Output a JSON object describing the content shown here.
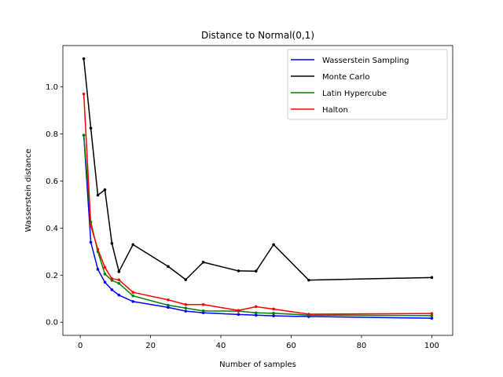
{
  "chart_data": {
    "type": "line",
    "title": "Distance to Normal(0,1)",
    "xlabel": "Number of samples",
    "ylabel": "Wasserstein distance",
    "xlim": [
      -4.95,
      105.95
    ],
    "ylim": [
      -0.056,
      1.176
    ],
    "xticks": [
      0,
      20,
      40,
      60,
      80,
      100
    ],
    "yticks": [
      0.0,
      0.2,
      0.4,
      0.6,
      0.8,
      1.0
    ],
    "xtick_labels": [
      "0",
      "20",
      "40",
      "60",
      "80",
      "100"
    ],
    "ytick_labels": [
      "0.0",
      "0.2",
      "0.4",
      "0.6",
      "0.8",
      "1.0"
    ],
    "grid": false,
    "legend_position": "top-right",
    "series": [
      {
        "name": "Wasserstein Sampling",
        "color": "#0000ff",
        "x": [
          1,
          3,
          5,
          7,
          9,
          11,
          15,
          25,
          30,
          35,
          45,
          50,
          55,
          65,
          100
        ],
        "y": [
          0.795,
          0.34,
          0.225,
          0.17,
          0.138,
          0.115,
          0.088,
          0.063,
          0.047,
          0.04,
          0.033,
          0.03,
          0.027,
          0.024,
          0.017
        ]
      },
      {
        "name": "Monte Carlo",
        "color": "#000000",
        "x": [
          1,
          3,
          5,
          7,
          9,
          11,
          15,
          25,
          30,
          35,
          45,
          50,
          55,
          65,
          100
        ],
        "y": [
          1.12,
          0.825,
          0.54,
          0.563,
          0.335,
          0.215,
          0.33,
          0.237,
          0.181,
          0.255,
          0.218,
          0.217,
          0.33,
          0.179,
          0.19
        ]
      },
      {
        "name": "Latin Hypercube",
        "color": "#008000",
        "x": [
          1,
          3,
          5,
          7,
          9,
          11,
          15,
          25,
          30,
          35,
          45,
          50,
          55,
          65,
          100
        ],
        "y": [
          0.795,
          0.425,
          0.3,
          0.205,
          0.178,
          0.165,
          0.112,
          0.072,
          0.06,
          0.048,
          0.047,
          0.04,
          0.038,
          0.03,
          0.028
        ]
      },
      {
        "name": "Halton",
        "color": "#ff0000",
        "x": [
          1,
          3,
          5,
          7,
          9,
          11,
          15,
          25,
          30,
          35,
          45,
          50,
          55,
          65,
          100
        ],
        "y": [
          0.97,
          0.41,
          0.31,
          0.233,
          0.185,
          0.18,
          0.127,
          0.095,
          0.075,
          0.075,
          0.05,
          0.066,
          0.056,
          0.034,
          0.037
        ]
      }
    ]
  }
}
